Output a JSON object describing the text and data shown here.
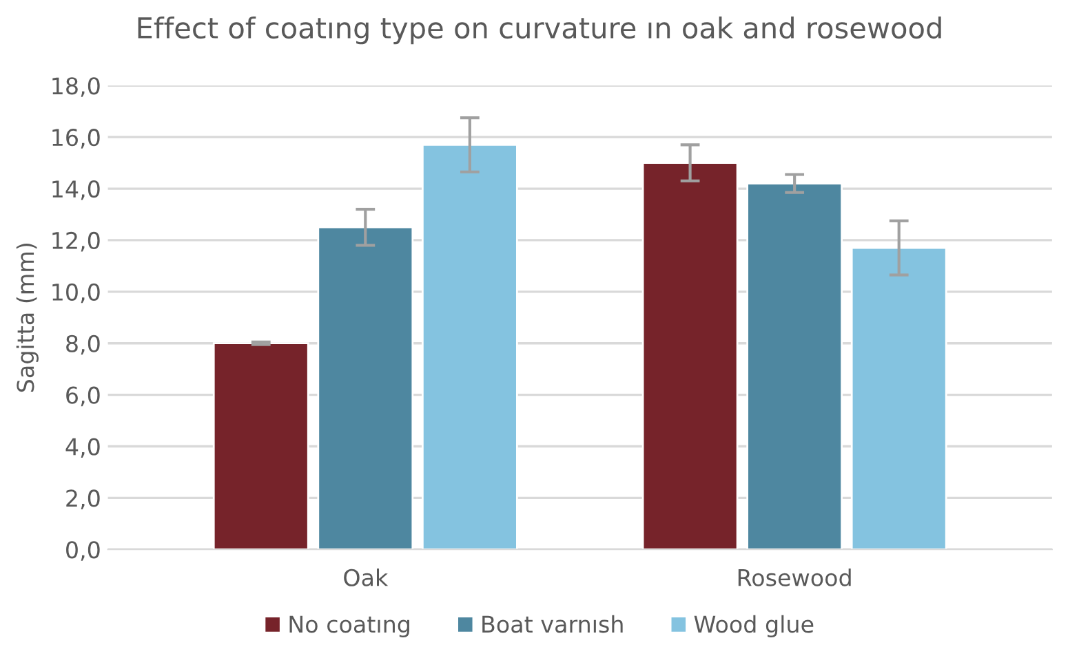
{
  "chart_data": {
    "type": "bar",
    "title": "Effect of coatıng type on curvature ın oak and rosewood",
    "ylabel": "Sagitta (mm)",
    "categories": [
      "Oak",
      "Rosewood"
    ],
    "series": [
      {
        "name": "No coatıng",
        "color": "#76232a",
        "values": [
          8.0,
          15.0
        ],
        "errors": [
          0.05,
          0.7
        ]
      },
      {
        "name": "Boat varnısh",
        "color": "#4e87a0",
        "values": [
          12.5,
          14.2
        ],
        "errors": [
          0.7,
          0.35
        ]
      },
      {
        "name": "Wood glue",
        "color": "#84c3e0",
        "values": [
          15.7,
          11.7
        ],
        "errors": [
          1.05,
          1.05
        ]
      }
    ],
    "ylim": [
      0,
      18
    ],
    "yticks": [
      {
        "value": 0,
        "label": "0,0"
      },
      {
        "value": 2,
        "label": "2,0"
      },
      {
        "value": 4,
        "label": "4,0"
      },
      {
        "value": 6,
        "label": "6,0"
      },
      {
        "value": 8,
        "label": "8,0"
      },
      {
        "value": 10,
        "label": "10,0"
      },
      {
        "value": 12,
        "label": "12,0"
      },
      {
        "value": 14,
        "label": "14,0"
      },
      {
        "value": 16,
        "label": "16,0"
      },
      {
        "value": 18,
        "label": "18,0"
      }
    ],
    "grid": "y",
    "legend": "bottom"
  }
}
